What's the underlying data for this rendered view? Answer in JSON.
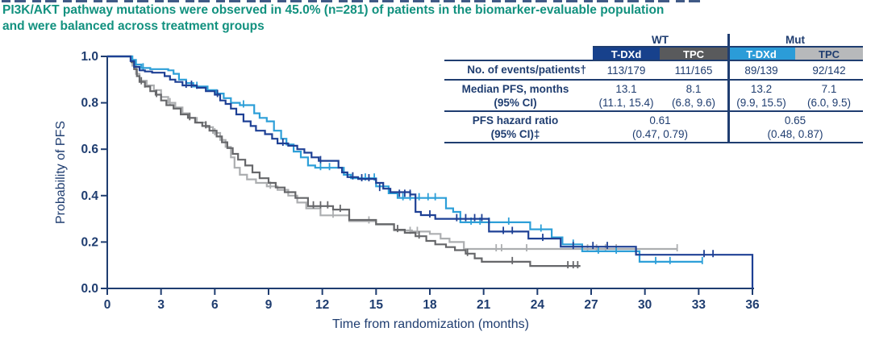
{
  "title": {
    "line1": "PI3K/AKT pathway mutations were observed in 45.0% (n=281) of patients in the biomarker-evaluable population",
    "line2": "and were balanced across treatment groups",
    "color": "#12917f"
  },
  "colors": {
    "navy": "#1f3d70",
    "tdxd_wt": "#17418c",
    "tpc_wt": "#595a5c",
    "tdxd_mut": "#2b9cd8",
    "tpc_mut": "#b7b9bb"
  },
  "table": {
    "group_headers": [
      "WT",
      "Mut"
    ],
    "col_headers": [
      "T-DXd",
      "TPC",
      "T-DXd",
      "TPC"
    ],
    "col_header_bg": [
      "#17418c",
      "#595a5c",
      "#2b9cd8",
      "#b7b9bb"
    ],
    "col_header_fg": [
      "#ffffff",
      "#ffffff",
      "#ffffff",
      "#1f3d70"
    ],
    "events": {
      "label": "No. of events/patients†",
      "values": [
        "113/179",
        "111/165",
        "89/139",
        "92/142"
      ]
    },
    "median": {
      "label1": "Median PFS, months",
      "label2": "(95% CI)",
      "values": [
        "13.1",
        "8.1",
        "13.2",
        "7.1"
      ],
      "cis": [
        "(11.1, 15.4)",
        "(6.8, 9.6)",
        "(9.9, 15.5)",
        "(6.0, 9.5)"
      ]
    },
    "hazard": {
      "label1": "PFS hazard ratio",
      "label2": "(95% CI)‡",
      "values": [
        "0.61",
        "0.65"
      ],
      "cis": [
        "(0.47, 0.79)",
        "(0.48, 0.87)"
      ]
    }
  },
  "chart_data": {
    "type": "line",
    "subtype": "kaplan-meier-step",
    "xlabel": "Time from randomization (months)",
    "ylabel": "Probability of PFS",
    "xlim": [
      0,
      36
    ],
    "ylim": [
      0.0,
      1.0
    ],
    "x_ticks": [
      0,
      3,
      6,
      9,
      12,
      15,
      18,
      21,
      24,
      27,
      30,
      33,
      36
    ],
    "y_ticks": [
      0.0,
      0.2,
      0.4,
      0.6,
      0.8,
      1.0
    ],
    "grid": false,
    "legend": "none (series identified by table header colors)",
    "series": [
      {
        "name": "TPC (Mut)",
        "color": "#acaeb0",
        "steps": [
          [
            0,
            1.0
          ],
          [
            1.4,
            0.96
          ],
          [
            1.6,
            0.925
          ],
          [
            1.8,
            0.895
          ],
          [
            2.2,
            0.875
          ],
          [
            2.6,
            0.855
          ],
          [
            3.0,
            0.825
          ],
          [
            3.4,
            0.8
          ],
          [
            3.8,
            0.78
          ],
          [
            4.2,
            0.755
          ],
          [
            4.6,
            0.735
          ],
          [
            5.0,
            0.715
          ],
          [
            5.5,
            0.695
          ],
          [
            5.9,
            0.67
          ],
          [
            6.3,
            0.64
          ],
          [
            6.6,
            0.61
          ],
          [
            6.9,
            0.565
          ],
          [
            7.1,
            0.52
          ],
          [
            7.4,
            0.49
          ],
          [
            7.8,
            0.47
          ],
          [
            8.3,
            0.455
          ],
          [
            8.9,
            0.44
          ],
          [
            9.5,
            0.425
          ],
          [
            10.1,
            0.4
          ],
          [
            10.6,
            0.37
          ],
          [
            11.1,
            0.345
          ],
          [
            11.9,
            0.315
          ],
          [
            13.5,
            0.29
          ],
          [
            15.0,
            0.275
          ],
          [
            16.0,
            0.25
          ],
          [
            17.0,
            0.245
          ],
          [
            18.0,
            0.235
          ],
          [
            18.6,
            0.215
          ],
          [
            19.1,
            0.2
          ],
          [
            19.9,
            0.17
          ],
          [
            31.8,
            0.17
          ]
        ],
        "censors": [
          [
            2.1,
            0.875
          ],
          [
            3.5,
            0.8
          ],
          [
            6.0,
            0.67
          ],
          [
            9.1,
            0.44
          ],
          [
            12.6,
            0.315
          ],
          [
            14.6,
            0.29
          ],
          [
            16.9,
            0.245
          ],
          [
            17.3,
            0.245
          ],
          [
            21.7,
            0.17
          ],
          [
            22.0,
            0.17
          ],
          [
            23.4,
            0.17
          ],
          [
            26.8,
            0.17
          ],
          [
            27.3,
            0.17
          ],
          [
            27.8,
            0.17
          ],
          [
            28.4,
            0.17
          ],
          [
            31.8,
            0.17
          ]
        ]
      },
      {
        "name": "TPC (WT)",
        "color": "#66676a",
        "steps": [
          [
            0,
            1.0
          ],
          [
            1.35,
            0.975
          ],
          [
            1.5,
            0.945
          ],
          [
            1.65,
            0.915
          ],
          [
            1.8,
            0.89
          ],
          [
            2.1,
            0.87
          ],
          [
            2.4,
            0.85
          ],
          [
            2.7,
            0.835
          ],
          [
            3.0,
            0.81
          ],
          [
            3.3,
            0.79
          ],
          [
            3.7,
            0.775
          ],
          [
            4.1,
            0.75
          ],
          [
            4.5,
            0.735
          ],
          [
            4.9,
            0.715
          ],
          [
            5.3,
            0.7
          ],
          [
            5.7,
            0.68
          ],
          [
            6.1,
            0.655
          ],
          [
            6.4,
            0.63
          ],
          [
            6.7,
            0.605
          ],
          [
            7.0,
            0.58
          ],
          [
            7.3,
            0.555
          ],
          [
            7.7,
            0.53
          ],
          [
            8.1,
            0.5
          ],
          [
            8.5,
            0.475
          ],
          [
            9.0,
            0.455
          ],
          [
            9.4,
            0.435
          ],
          [
            9.9,
            0.415
          ],
          [
            10.5,
            0.39
          ],
          [
            11.2,
            0.355
          ],
          [
            12.6,
            0.34
          ],
          [
            13.5,
            0.295
          ],
          [
            15.0,
            0.277
          ],
          [
            16.0,
            0.253
          ],
          [
            16.6,
            0.24
          ],
          [
            17.2,
            0.225
          ],
          [
            17.8,
            0.205
          ],
          [
            18.3,
            0.19
          ],
          [
            18.9,
            0.178
          ],
          [
            19.4,
            0.165
          ],
          [
            20.0,
            0.15
          ],
          [
            20.5,
            0.13
          ],
          [
            20.9,
            0.115
          ],
          [
            23.6,
            0.097
          ],
          [
            26.4,
            0.097
          ]
        ],
        "censors": [
          [
            1.9,
            0.89
          ],
          [
            2.75,
            0.835
          ],
          [
            4.6,
            0.735
          ],
          [
            5.5,
            0.7
          ],
          [
            11.5,
            0.355
          ],
          [
            11.9,
            0.355
          ],
          [
            12.3,
            0.355
          ],
          [
            13.0,
            0.34
          ],
          [
            16.2,
            0.253
          ],
          [
            17.4,
            0.225
          ],
          [
            20.1,
            0.15
          ],
          [
            22.6,
            0.115
          ],
          [
            25.7,
            0.097
          ],
          [
            26.0,
            0.097
          ],
          [
            26.25,
            0.097
          ]
        ]
      },
      {
        "name": "T-DXd (Mut)",
        "color": "#2d9fd8",
        "steps": [
          [
            0,
            1.0
          ],
          [
            1.4,
            0.985
          ],
          [
            1.6,
            0.965
          ],
          [
            1.9,
            0.95
          ],
          [
            2.4,
            0.945
          ],
          [
            3.4,
            0.94
          ],
          [
            3.7,
            0.925
          ],
          [
            4.0,
            0.9
          ],
          [
            4.4,
            0.885
          ],
          [
            4.8,
            0.87
          ],
          [
            5.6,
            0.855
          ],
          [
            6.1,
            0.84
          ],
          [
            6.5,
            0.82
          ],
          [
            6.9,
            0.8
          ],
          [
            7.4,
            0.79
          ],
          [
            8.2,
            0.755
          ],
          [
            8.5,
            0.735
          ],
          [
            8.9,
            0.72
          ],
          [
            9.3,
            0.68
          ],
          [
            9.7,
            0.645
          ],
          [
            10.0,
            0.62
          ],
          [
            10.4,
            0.59
          ],
          [
            10.8,
            0.565
          ],
          [
            11.2,
            0.53
          ],
          [
            11.6,
            0.52
          ],
          [
            13.2,
            0.49
          ],
          [
            13.6,
            0.475
          ],
          [
            15.0,
            0.44
          ],
          [
            15.7,
            0.41
          ],
          [
            16.2,
            0.39
          ],
          [
            18.9,
            0.345
          ],
          [
            19.3,
            0.33
          ],
          [
            19.7,
            0.285
          ],
          [
            23.6,
            0.255
          ],
          [
            24.8,
            0.22
          ],
          [
            25.4,
            0.19
          ],
          [
            26.5,
            0.16
          ],
          [
            29.7,
            0.115
          ],
          [
            33.2,
            0.115
          ]
        ],
        "censors": [
          [
            2.0,
            0.95
          ],
          [
            5.0,
            0.87
          ],
          [
            7.6,
            0.79
          ],
          [
            11.9,
            0.52
          ],
          [
            12.4,
            0.52
          ],
          [
            14.4,
            0.475
          ],
          [
            14.9,
            0.475
          ],
          [
            16.5,
            0.39
          ],
          [
            16.9,
            0.39
          ],
          [
            17.4,
            0.39
          ],
          [
            17.9,
            0.39
          ],
          [
            18.3,
            0.39
          ],
          [
            20.3,
            0.285
          ],
          [
            20.8,
            0.285
          ],
          [
            21.3,
            0.285
          ],
          [
            22.4,
            0.285
          ],
          [
            24.2,
            0.255
          ],
          [
            26.0,
            0.19
          ],
          [
            27.4,
            0.16
          ],
          [
            28.4,
            0.16
          ],
          [
            30.6,
            0.115
          ],
          [
            31.4,
            0.115
          ],
          [
            33.2,
            0.115
          ]
        ]
      },
      {
        "name": "T-DXd (WT)",
        "color": "#1e4095",
        "steps": [
          [
            0,
            1.0
          ],
          [
            1.3,
            0.98
          ],
          [
            1.5,
            0.955
          ],
          [
            1.8,
            0.94
          ],
          [
            2.1,
            0.935
          ],
          [
            2.5,
            0.93
          ],
          [
            3.2,
            0.915
          ],
          [
            3.5,
            0.9
          ],
          [
            3.8,
            0.89
          ],
          [
            4.2,
            0.875
          ],
          [
            5.0,
            0.865
          ],
          [
            5.5,
            0.85
          ],
          [
            6.0,
            0.835
          ],
          [
            6.3,
            0.81
          ],
          [
            6.6,
            0.795
          ],
          [
            6.9,
            0.775
          ],
          [
            7.2,
            0.75
          ],
          [
            7.6,
            0.72
          ],
          [
            8.0,
            0.7
          ],
          [
            8.3,
            0.68
          ],
          [
            8.8,
            0.665
          ],
          [
            9.2,
            0.645
          ],
          [
            9.5,
            0.625
          ],
          [
            10.1,
            0.615
          ],
          [
            10.6,
            0.6
          ],
          [
            11.0,
            0.585
          ],
          [
            11.4,
            0.565
          ],
          [
            11.8,
            0.55
          ],
          [
            12.9,
            0.52
          ],
          [
            13.1,
            0.5
          ],
          [
            13.4,
            0.48
          ],
          [
            14.0,
            0.472
          ],
          [
            15.0,
            0.455
          ],
          [
            15.4,
            0.43
          ],
          [
            15.8,
            0.415
          ],
          [
            16.9,
            0.405
          ],
          [
            17.2,
            0.33
          ],
          [
            17.5,
            0.316
          ],
          [
            18.3,
            0.3
          ],
          [
            21.3,
            0.245
          ],
          [
            23.5,
            0.215
          ],
          [
            25.3,
            0.18
          ],
          [
            29.5,
            0.145
          ],
          [
            36,
            0.145
          ],
          [
            36,
            0.0
          ]
        ],
        "censors": [
          [
            4.4,
            0.875
          ],
          [
            4.7,
            0.875
          ],
          [
            6.15,
            0.835
          ],
          [
            9.8,
            0.625
          ],
          [
            11.9,
            0.55
          ],
          [
            13.7,
            0.48
          ],
          [
            14.2,
            0.472
          ],
          [
            14.6,
            0.472
          ],
          [
            15.2,
            0.43
          ],
          [
            16.3,
            0.405
          ],
          [
            16.6,
            0.405
          ],
          [
            16.9,
            0.405
          ],
          [
            18.0,
            0.316
          ],
          [
            19.5,
            0.3
          ],
          [
            20.0,
            0.3
          ],
          [
            20.5,
            0.3
          ],
          [
            20.9,
            0.3
          ],
          [
            22.1,
            0.245
          ],
          [
            22.6,
            0.245
          ],
          [
            24.3,
            0.215
          ],
          [
            26.0,
            0.18
          ],
          [
            27.1,
            0.18
          ],
          [
            27.9,
            0.18
          ],
          [
            33.3,
            0.145
          ],
          [
            33.8,
            0.145
          ]
        ]
      }
    ]
  }
}
